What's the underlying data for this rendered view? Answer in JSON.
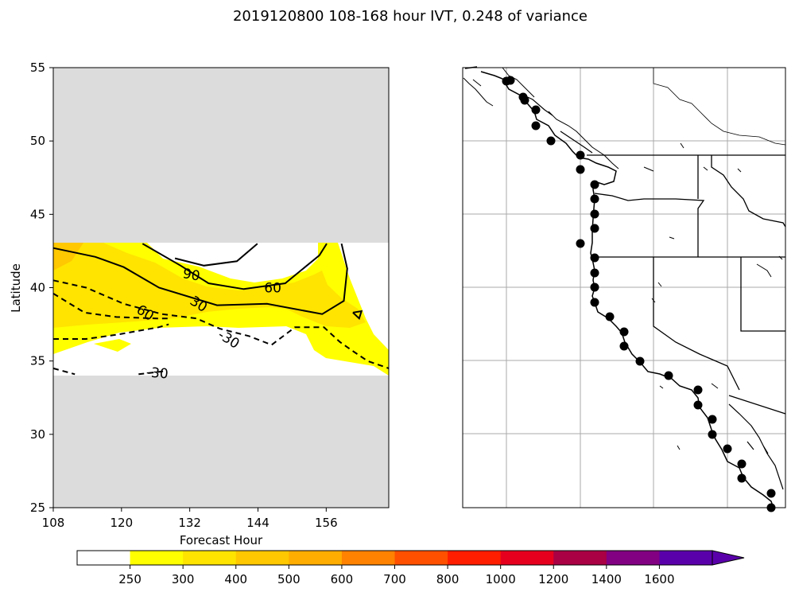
{
  "chart_data": [
    {
      "type": "contour",
      "panel": "left",
      "title": "2019120800 108-168 hour IVT, 0.248 of variance",
      "xlabel": "Forecast Hour",
      "ylabel": "Latitude",
      "xlim": [
        108,
        167
      ],
      "ylim": [
        25,
        55
      ],
      "x_ticks": [
        "108",
        "120",
        "132",
        "144",
        "156"
      ],
      "y_ticks": [
        "25",
        "30",
        "35",
        "40",
        "45",
        "50",
        "55"
      ],
      "data_band_latitudes": [
        34,
        43
      ],
      "missing_region_color": "#dcdcdc",
      "contour_labels": [
        {
          "text": "90",
          "x": 132.3,
          "y": 40.9,
          "rot": 10
        },
        {
          "text": "60",
          "x": 146.6,
          "y": 40.0,
          "rot": 0
        },
        {
          "text": "30",
          "x": 133.6,
          "y": 38.9,
          "rot": 32
        },
        {
          "text": "60",
          "x": 124.2,
          "y": 38.3,
          "rot": 32
        },
        {
          "text": "-30",
          "x": 138.9,
          "y": 36.5,
          "rot": 32
        },
        {
          "text": "-30",
          "x": 126.3,
          "y": 34.2,
          "rot": 5
        }
      ],
      "contour_lines": [
        {
          "level": 90,
          "style": "solid",
          "points": [
            [
              123.7,
              43
            ],
            [
              130.4,
              41.5
            ],
            [
              135.3,
              40.3
            ],
            [
              141.5,
              39.9
            ],
            [
              148.8,
              40.3
            ],
            [
              154.8,
              42.2
            ],
            [
              156.1,
              43
            ]
          ]
        },
        {
          "level": 90,
          "style": "solid",
          "points": [
            [
              143.9,
              43
            ],
            [
              140.3,
              41.8
            ],
            [
              134.5,
              41.5
            ],
            [
              129.4,
              42.0
            ]
          ]
        },
        {
          "level": 60,
          "style": "solid",
          "points": [
            [
              108,
              42.7
            ],
            [
              115.4,
              42.1
            ],
            [
              120.4,
              41.4
            ],
            [
              126.6,
              40.0
            ],
            [
              136.8,
              38.8
            ],
            [
              145.6,
              38.9
            ],
            [
              155.3,
              38.2
            ],
            [
              159.1,
              39.1
            ],
            [
              159.7,
              41.3
            ],
            [
              158.7,
              43
            ]
          ]
        },
        {
          "level": 60,
          "style": "solid",
          "points": [
            [
              160.7,
              38.3
            ],
            [
              162.2,
              38.4
            ],
            [
              161.8,
              37.9
            ],
            [
              160.7,
              38.3
            ]
          ]
        },
        {
          "level": -60,
          "style": "dashed",
          "points": [
            [
              108,
              40.5
            ],
            [
              113.8,
              40.0
            ],
            [
              120.4,
              38.9
            ],
            [
              127.1,
              38.2
            ],
            [
              133.2,
              37.9
            ],
            [
              137.3,
              37.2
            ],
            [
              142.4,
              36.7
            ],
            [
              146.4,
              36.1
            ],
            [
              150.5,
              37.3
            ],
            [
              155.6,
              37.3
            ],
            [
              158.4,
              36.3
            ],
            [
              160.6,
              35.7
            ],
            [
              163.3,
              35.0
            ],
            [
              167,
              34.5
            ]
          ]
        },
        {
          "level": -60,
          "style": "dashed",
          "points": [
            [
              108,
              39.6
            ],
            [
              113.5,
              38.3
            ],
            [
              119.1,
              38.0
            ],
            [
              126.3,
              37.9
            ],
            [
              128.1,
              37.9
            ]
          ]
        },
        {
          "level": -30,
          "style": "dashed",
          "points": [
            [
              108,
              36.5
            ],
            [
              113.7,
              36.5
            ],
            [
              119.3,
              36.8
            ],
            [
              126.5,
              37.3
            ],
            [
              128.3,
              37.5
            ]
          ]
        },
        {
          "level": -30,
          "style": "dashed",
          "points": [
            [
              108,
              34.5
            ],
            [
              111.8,
              34.1
            ]
          ]
        },
        {
          "level": -30,
          "style": "dashed",
          "points": [
            [
              123.0,
              34.1
            ],
            [
              127.4,
              34.3
            ]
          ]
        }
      ],
      "fill_color": "#ffff00",
      "fill_color_2": "#ffe400",
      "fill_color_3": "#ffc800"
    },
    {
      "type": "map",
      "panel": "right",
      "points": 32
    }
  ],
  "colorbar": {
    "tick_labels": [
      "250",
      "300",
      "400",
      "500",
      "600",
      "700",
      "800",
      "1000",
      "1200",
      "1400",
      "1600"
    ],
    "colors": [
      "#ffffff",
      "#ffff00",
      "#ffe400",
      "#ffc800",
      "#ffad00",
      "#ff8200",
      "#ff5000",
      "#ff1e00",
      "#e6001e",
      "#aa0044",
      "#820082",
      "#5a00aa"
    ]
  }
}
